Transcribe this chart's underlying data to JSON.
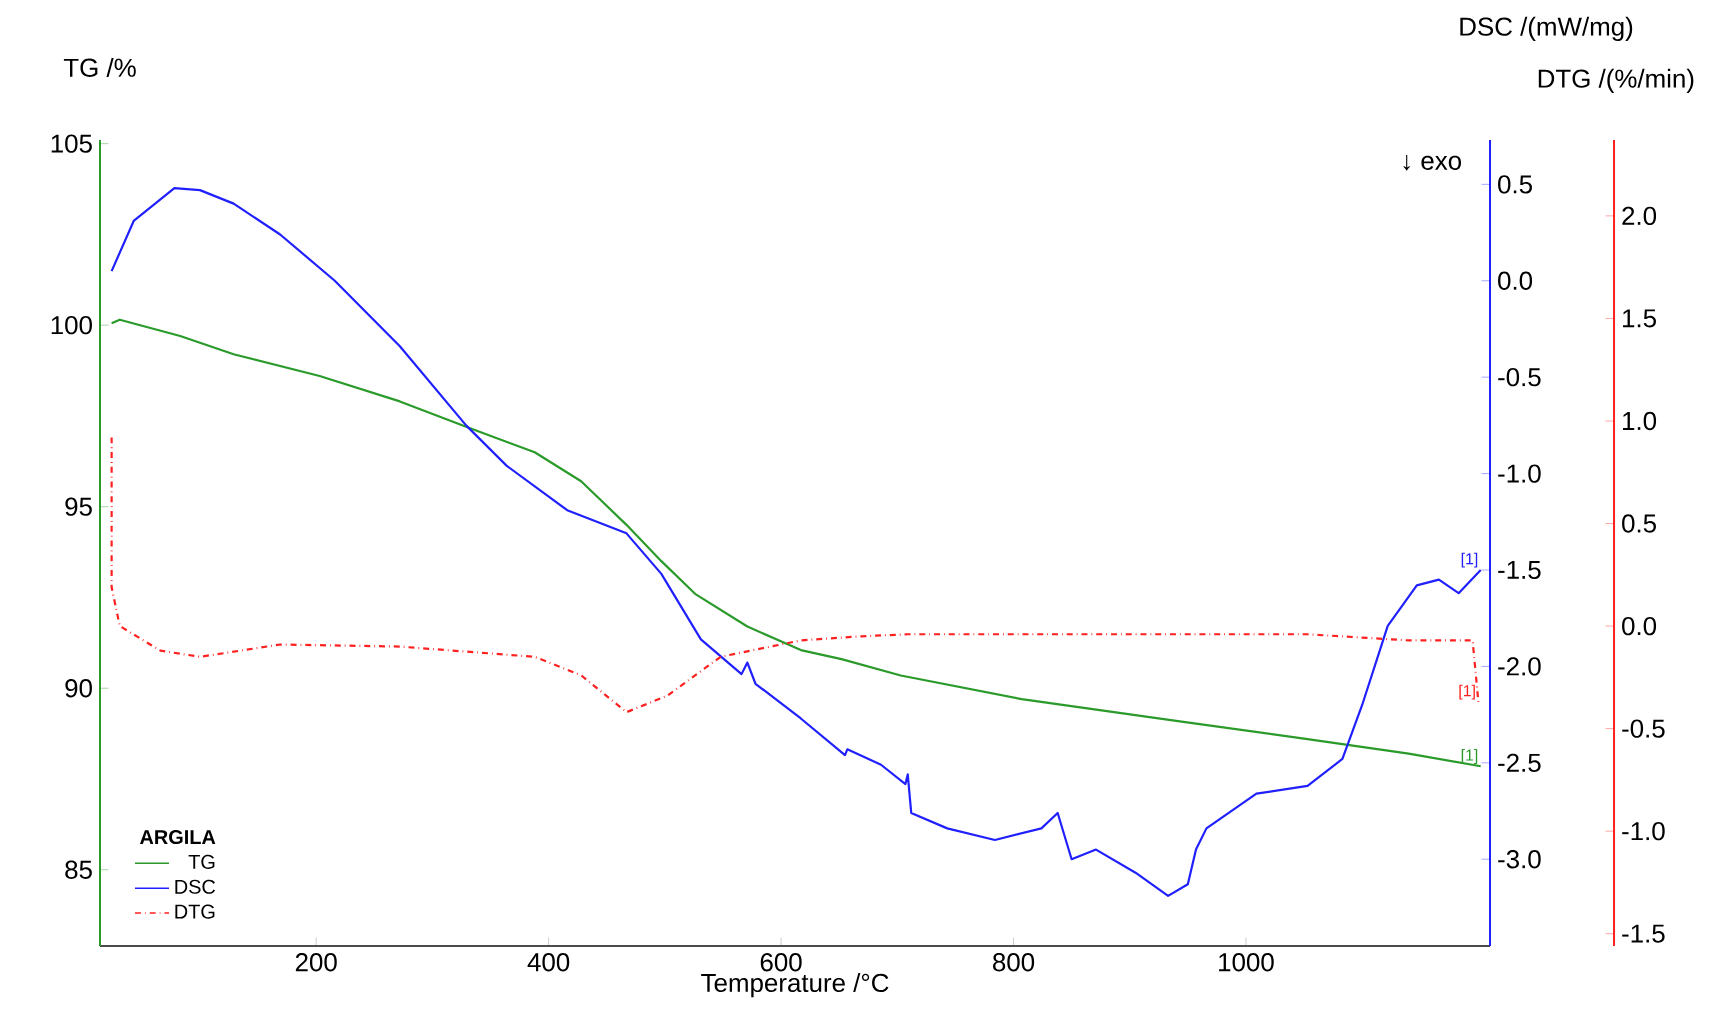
{
  "chart_data": {
    "type": "line",
    "xlabel": "Temperature /°C",
    "ylabel": "TG /%",
    "y2label": "DSC /(mW/mg)",
    "y3label": "DTG /(%/min)",
    "legend_title": "ARGILA",
    "legend": "bottom left",
    "marker": "none",
    "annotations": [
      "↓ exo",
      "[1]",
      "[1]",
      "[1]"
    ],
    "xlim": [
      14,
      1210
    ],
    "xticks": [
      200,
      400,
      600,
      800,
      1000
    ],
    "ylim": [
      82.9,
      105.1
    ],
    "yticks": [
      85,
      90,
      95,
      100,
      105
    ],
    "y2lim": [
      -3.45,
      0.73
    ],
    "y2ticks": [
      0.5,
      {
        "value": 0,
        "label": "0.0"
      },
      -0.5,
      {
        "value": -1,
        "label": "-1.0"
      },
      -1.5,
      {
        "value": -2,
        "label": "-2.0"
      },
      -2.5,
      {
        "value": -3,
        "label": "-3.0"
      }
    ],
    "y3lim": [
      -1.56,
      2.37
    ],
    "y3ticks": [
      {
        "value": 2,
        "label": "2.0"
      },
      1.5,
      {
        "value": 1,
        "label": "1.0"
      },
      0.5,
      {
        "value": 0,
        "label": "0.0"
      },
      -0.5,
      {
        "value": -1,
        "label": "-1.0"
      },
      -1.5
    ],
    "series": [
      {
        "name": "TG",
        "color": "#2a9a2a",
        "line_style": "solid",
        "x": [
          24,
          31,
          83,
          129,
          203,
          272,
          329,
          388,
          428,
          467,
          497,
          526,
          571,
          617,
          652,
          703,
          807,
          940,
          1053,
          1140,
          1202
        ],
        "values": [
          100.05,
          100.15,
          99.7,
          99.2,
          98.6,
          97.9,
          97.2,
          96.5,
          95.7,
          94.5,
          93.5,
          92.6,
          91.7,
          91.05,
          90.8,
          90.35,
          89.7,
          89.1,
          88.6,
          88.2,
          87.85
        ]
      },
      {
        "name": "DSC",
        "color": "#2020ff",
        "line_style": "solid",
        "axis": "y2",
        "x": [
          24,
          43,
          78,
          100,
          129,
          169,
          216,
          272,
          329,
          364,
          416,
          467,
          497,
          531,
          566,
          571,
          578,
          617,
          655,
          657,
          686,
          707,
          709,
          712,
          743,
          784,
          824,
          838,
          850,
          871,
          905,
          933,
          950,
          957,
          966,
          1009,
          1053,
          1083,
          1100,
          1122,
          1147,
          1166,
          1183,
          1202
        ],
        "values": [
          0.05,
          0.31,
          0.48,
          0.47,
          0.4,
          0.24,
          0.0,
          -0.34,
          -0.75,
          -0.96,
          -1.19,
          -1.31,
          -1.52,
          -1.86,
          -2.04,
          -1.98,
          -2.09,
          -2.27,
          -2.46,
          -2.43,
          -2.51,
          -2.61,
          -2.56,
          -2.76,
          -2.84,
          -2.9,
          -2.84,
          -2.76,
          -3.0,
          -2.95,
          -3.07,
          -3.19,
          -3.13,
          -2.95,
          -2.84,
          -2.66,
          -2.62,
          -2.48,
          -2.2,
          -1.79,
          -1.58,
          -1.55,
          -1.62,
          -1.5
        ]
      },
      {
        "name": "DTG",
        "color": "#ff2020",
        "line_style": "dashdot",
        "axis": "y3",
        "x": [
          24,
          24,
          31,
          66,
          100,
          169,
          272,
          388,
          428,
          467,
          502,
          548,
          617,
          669,
          709,
          881,
          1053,
          1140,
          1195,
          1200
        ],
        "values": [
          0.92,
          0.19,
          0.0,
          -0.12,
          -0.15,
          -0.09,
          -0.1,
          -0.15,
          -0.24,
          -0.42,
          -0.34,
          -0.15,
          -0.07,
          -0.05,
          -0.04,
          -0.04,
          -0.04,
          -0.07,
          -0.07,
          -0.37
        ]
      }
    ]
  }
}
